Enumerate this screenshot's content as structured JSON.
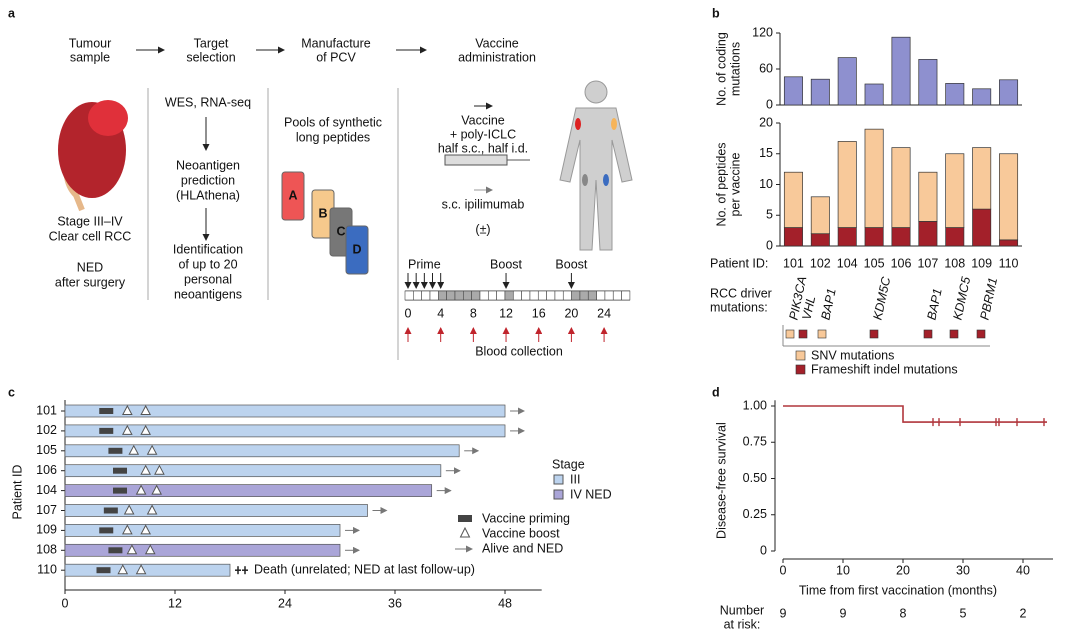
{
  "panel_labels": [
    "a",
    "b",
    "c",
    "d"
  ],
  "diagram": {
    "steps": [
      [
        "Tumour",
        "sample"
      ],
      [
        "Target",
        "selection"
      ],
      [
        "Manufacture",
        "of PCV"
      ],
      [
        "Vaccine",
        "administration"
      ]
    ],
    "diagnosis": [
      "Stage III–IV",
      "Clear cell RCC"
    ],
    "status": [
      "NED",
      "after surgery"
    ],
    "sequencing": "WES, RNA-seq",
    "prediction": [
      "Neoantigen",
      "prediction",
      "(HLAthena)"
    ],
    "identification": [
      "Identification",
      "of up to 20",
      "personal",
      "neoantigens"
    ],
    "peptides": [
      "Pools of synthetic",
      "long peptides"
    ],
    "vials": [
      "A",
      "B",
      "C",
      "D"
    ],
    "vaccine": [
      "Vaccine",
      "+ poly-ICLC",
      "half s.c., half i.d."
    ],
    "ipilimumab": "s.c. ipilimumab",
    "optional": "(±)",
    "schedule": {
      "events": [
        "Prime",
        "Boost",
        "Boost"
      ],
      "event_weeks": [
        [
          0,
          1,
          2,
          3,
          4
        ],
        [
          12
        ],
        [
          20
        ]
      ],
      "weeks": [
        0,
        4,
        8,
        12,
        16,
        20,
        24
      ],
      "caption": "Blood collection"
    }
  },
  "chart_data": [
    {
      "type": "bar",
      "ylabel": [
        "No. of coding",
        "mutations"
      ],
      "values": [
        47,
        43,
        79,
        35,
        113,
        76,
        36,
        27,
        42
      ],
      "color": "#8e90cf",
      "ylim": [
        0,
        120
      ],
      "yticks": [
        0,
        60,
        120
      ]
    },
    {
      "type": "stacked_bar",
      "ylabel": [
        "No. of peptides",
        "per vaccine"
      ],
      "xlabel": "Patient ID:",
      "categories": [
        "101",
        "102",
        "104",
        "105",
        "106",
        "107",
        "108",
        "109",
        "110"
      ],
      "series": [
        {
          "name": "SNV mutations",
          "color": "#f8c99a",
          "values": [
            9,
            6,
            14,
            16,
            13,
            8,
            12,
            10,
            14
          ]
        },
        {
          "name": "Frameshift indel mutations",
          "color": "#a3202a",
          "values": [
            3,
            2,
            3,
            3,
            3,
            4,
            3,
            6,
            1
          ]
        }
      ],
      "ylim": [
        0,
        20
      ],
      "yticks": [
        0,
        5,
        10,
        15,
        20
      ],
      "driver_label": [
        "RCC driver",
        "mutations:"
      ],
      "drivers": [
        {
          "gene": "PIK3CA",
          "color": "#f8c99a"
        },
        {
          "gene": "VHL",
          "color": "#a3202a"
        },
        {
          "gene": "BAP1",
          "color": "#f8c99a"
        },
        {
          "gene": "KDM5C",
          "color": "#a3202a"
        },
        {
          "gene": "BAP1",
          "color": "#a3202a"
        },
        {
          "gene": "KDMC5",
          "color": "#a3202a"
        },
        {
          "gene": "PBRM1",
          "color": "#a3202a"
        }
      ]
    },
    {
      "type": "swimmer",
      "ylabel": "Patient ID",
      "categories": [
        "101",
        "102",
        "105",
        "106",
        "104",
        "107",
        "109",
        "108",
        "110"
      ],
      "values": [
        48,
        48,
        43,
        41,
        40,
        33,
        30,
        30,
        18
      ],
      "stage": [
        "III",
        "III",
        "III",
        "III",
        "IV NED",
        "III",
        "III",
        "IV NED",
        "III"
      ],
      "series": [
        {
          "name": "III",
          "color": "#bcd3ee"
        },
        {
          "name": "IV NED",
          "color": "#aaa5d8"
        }
      ],
      "priming": [
        4.5,
        4.5,
        5.5,
        6,
        6,
        5,
        4.5,
        5.5,
        4.2
      ],
      "boosts": [
        [
          6.8,
          8.8
        ],
        [
          6.8,
          8.8
        ],
        [
          7.5,
          9.5
        ],
        [
          8.8,
          10.3
        ],
        [
          8.3,
          10
        ],
        [
          7,
          9.5
        ],
        [
          6.8,
          8.8
        ],
        [
          7.3,
          9.3
        ],
        [
          6.3,
          8.3
        ]
      ],
      "alive": [
        true,
        true,
        true,
        true,
        true,
        true,
        true,
        true,
        false
      ],
      "legend_title": "Stage",
      "markers": {
        "priming": "Vaccine priming",
        "boost": "Vaccine boost",
        "alive": "Alive and NED"
      },
      "annotation": "Death (unrelated; NED at last follow-up)",
      "xlim": [
        0,
        52
      ],
      "xticks": [
        0,
        12,
        24,
        36,
        48
      ]
    },
    {
      "type": "line",
      "xlabel": "Time from first vaccination (months)",
      "ylabel": "Disease-free survival",
      "x": [
        0,
        20,
        20,
        44
      ],
      "series": [
        {
          "color": "#b0363c",
          "values": [
            1,
            1,
            0.889,
            0.889
          ]
        }
      ],
      "censor_x": [
        25,
        26,
        29.5,
        35.5,
        36,
        39,
        43.5
      ],
      "xlim": [
        0,
        45
      ],
      "ylim": [
        0,
        1.04
      ],
      "xticks": [
        0,
        10,
        20,
        30,
        40
      ],
      "yticks": [
        0,
        0.25,
        {
          "value": 0.5,
          "label": "0.50"
        },
        0.75,
        {
          "value": 1,
          "label": "1.00"
        }
      ],
      "risk_label": [
        "Number",
        "at risk:"
      ],
      "at_risk": [
        9,
        9,
        8,
        5,
        2
      ]
    }
  ]
}
